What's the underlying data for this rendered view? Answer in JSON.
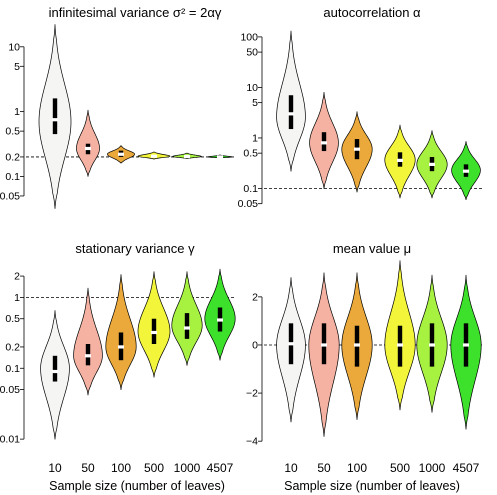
{
  "figure": {
    "xlabel": "Sample size (number of leaves)",
    "categories": [
      "10",
      "50",
      "100",
      "500",
      "1000",
      "4507"
    ],
    "colors": [
      "#f5f5f3",
      "#f5b2a3",
      "#eaa93a",
      "#f2f53a",
      "#a7f240",
      "#3de02a"
    ]
  },
  "chart_data": [
    {
      "type": "violin",
      "title": "infinitesimal variance σ² = 2αγ",
      "scale": "log",
      "ylim": [
        0.035,
        25
      ],
      "ticks": [
        0.05,
        0.1,
        0.2,
        0.5,
        1,
        5,
        10
      ],
      "tick_labels": [
        "0.05",
        "0.1",
        "0.2",
        "0.5",
        "1",
        "5",
        "10"
      ],
      "refline": 0.2,
      "categories": [
        "10",
        "50",
        "100",
        "500",
        "1000",
        "4507"
      ],
      "series": [
        {
          "min": 0.032,
          "max": 22,
          "mode": 0.7,
          "width": 1.0,
          "q1": 0.45,
          "q3": 1.6,
          "median": 0.75
        },
        {
          "min": 0.1,
          "max": 1.05,
          "mode": 0.27,
          "width": 0.72,
          "q1": 0.22,
          "q3": 0.32,
          "median": 0.27
        },
        {
          "min": 0.16,
          "max": 0.3,
          "mode": 0.22,
          "width": 0.85,
          "q1": 0.2,
          "q3": 0.25,
          "median": 0.22
        },
        {
          "min": 0.185,
          "max": 0.24,
          "mode": 0.205,
          "width": 1.0,
          "q1": 0.198,
          "q3": 0.212,
          "median": 0.205
        },
        {
          "min": 0.188,
          "max": 0.23,
          "mode": 0.203,
          "width": 0.9,
          "q1": 0.198,
          "q3": 0.21,
          "median": 0.203
        },
        {
          "min": 0.192,
          "max": 0.215,
          "mode": 0.2,
          "width": 0.75,
          "q1": 0.197,
          "q3": 0.204,
          "median": 0.2
        }
      ]
    },
    {
      "type": "violin",
      "title": "autocorrelation α",
      "scale": "log",
      "ylim": [
        0.045,
        150
      ],
      "ticks": [
        0.05,
        0.1,
        0.5,
        1,
        5,
        10,
        50,
        100
      ],
      "tick_labels": [
        "0.05",
        "0.1",
        "0.5",
        "1",
        "5",
        "10",
        "50",
        "100"
      ],
      "refline": 0.1,
      "categories": [
        "10",
        "50",
        "100",
        "500",
        "1000",
        "4507"
      ],
      "series": [
        {
          "min": 0.22,
          "max": 130,
          "mode": 2.6,
          "width": 0.9,
          "q1": 1.5,
          "q3": 7,
          "median": 3
        },
        {
          "min": 0.1,
          "max": 8,
          "mode": 0.8,
          "width": 0.9,
          "q1": 0.55,
          "q3": 1.3,
          "median": 0.8
        },
        {
          "min": 0.085,
          "max": 3.3,
          "mode": 0.6,
          "width": 0.95,
          "q1": 0.38,
          "q3": 0.95,
          "median": 0.6
        },
        {
          "min": 0.065,
          "max": 1.8,
          "mode": 0.37,
          "width": 0.95,
          "q1": 0.27,
          "q3": 0.52,
          "median": 0.36
        },
        {
          "min": 0.065,
          "max": 1.4,
          "mode": 0.3,
          "width": 0.95,
          "q1": 0.22,
          "q3": 0.42,
          "median": 0.3
        },
        {
          "min": 0.06,
          "max": 0.85,
          "mode": 0.23,
          "width": 0.9,
          "q1": 0.17,
          "q3": 0.3,
          "median": 0.22
        }
      ]
    },
    {
      "type": "violin",
      "title": "stationary variance γ",
      "scale": "log",
      "ylim": [
        0.008,
        2.6
      ],
      "ticks": [
        0.01,
        0.05,
        0.1,
        0.2,
        0.5,
        1,
        2
      ],
      "tick_labels": [
        "0.01",
        "0.05",
        "0.1",
        "0.2",
        "0.5",
        "1",
        "2"
      ],
      "refline": 1,
      "categories": [
        "10",
        "50",
        "100",
        "500",
        "1000",
        "4507"
      ],
      "series": [
        {
          "min": 0.01,
          "max": 0.65,
          "mode": 0.1,
          "width": 0.9,
          "q1": 0.065,
          "q3": 0.15,
          "median": 0.09
        },
        {
          "min": 0.042,
          "max": 1.35,
          "mode": 0.15,
          "width": 0.9,
          "q1": 0.11,
          "q3": 0.22,
          "median": 0.15
        },
        {
          "min": 0.05,
          "max": 2.1,
          "mode": 0.2,
          "width": 0.95,
          "q1": 0.13,
          "q3": 0.32,
          "median": 0.2
        },
        {
          "min": 0.075,
          "max": 2.3,
          "mode": 0.33,
          "width": 1.0,
          "q1": 0.22,
          "q3": 0.5,
          "median": 0.32
        },
        {
          "min": 0.11,
          "max": 2.3,
          "mode": 0.4,
          "width": 0.95,
          "q1": 0.26,
          "q3": 0.6,
          "median": 0.37
        },
        {
          "min": 0.13,
          "max": 2.5,
          "mode": 0.5,
          "width": 0.95,
          "q1": 0.33,
          "q3": 0.72,
          "median": 0.48
        }
      ]
    },
    {
      "type": "violin",
      "title": "mean value μ",
      "scale": "linear",
      "ylim": [
        -4.2,
        3.2
      ],
      "ticks": [
        -4,
        -2,
        0,
        2
      ],
      "tick_labels": [
        "−4",
        "−2",
        "0",
        "2"
      ],
      "refline": 0,
      "categories": [
        "10",
        "50",
        "100",
        "500",
        "1000",
        "4507"
      ],
      "series": [
        {
          "min": -3.2,
          "max": 2.8,
          "mode": 0.0,
          "width": 0.9,
          "q1": -0.8,
          "q3": 0.9,
          "median": 0.05
        },
        {
          "min": -3.8,
          "max": 3.0,
          "mode": 0.0,
          "width": 0.95,
          "q1": -0.8,
          "q3": 0.9,
          "median": 0.0
        },
        {
          "min": -3.1,
          "max": 3.0,
          "mode": 0.0,
          "width": 0.95,
          "q1": -0.9,
          "q3": 0.8,
          "median": 0.0
        },
        {
          "min": -2.7,
          "max": 3.5,
          "mode": 0.0,
          "width": 0.95,
          "q1": -0.9,
          "q3": 0.8,
          "median": 0.0
        },
        {
          "min": -2.8,
          "max": 2.9,
          "mode": 0.0,
          "width": 0.95,
          "q1": -0.9,
          "q3": 0.9,
          "median": 0.0
        },
        {
          "min": -3.5,
          "max": 2.9,
          "mode": 0.0,
          "width": 0.95,
          "q1": -0.9,
          "q3": 0.9,
          "median": 0.0
        }
      ]
    }
  ]
}
